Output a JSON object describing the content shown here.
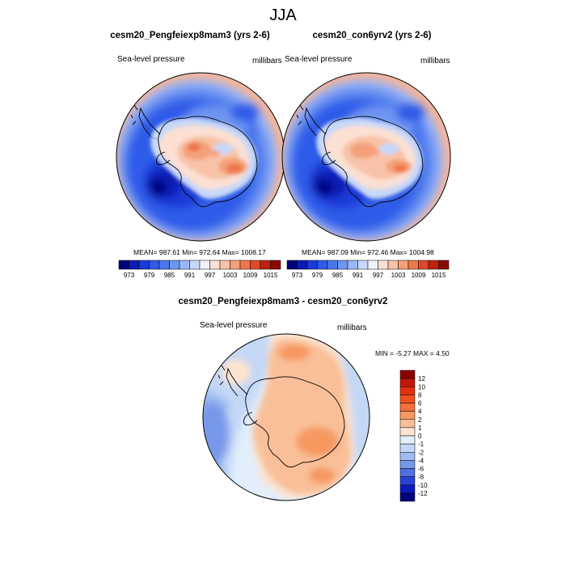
{
  "figure": {
    "title": "JJA"
  },
  "chart_data": [
    {
      "type": "heatmap",
      "title": "cesm20_Pengfeiexp8mam3 (yrs 2-6)",
      "variable": "Sea-level pressure",
      "units": "millibars",
      "stats": "MEAN= 987.61  Min= 972.64  Max= 1008.17",
      "mean": 987.61,
      "min": 972.64,
      "max": 1008.17,
      "colorbar": {
        "ticks": [
          "973",
          "979",
          "985",
          "991",
          "997",
          "1003",
          "1009",
          "1015"
        ],
        "levels": [
          973,
          976,
          979,
          982,
          985,
          988,
          991,
          994,
          997,
          1000,
          1003,
          1006,
          1009,
          1012,
          1015
        ],
        "colors": [
          "#00007a",
          "#0a1cb4",
          "#1a3bd8",
          "#2f5be8",
          "#4a77ee",
          "#6f95f2",
          "#9bb6f5",
          "#c7d8f8",
          "#ecf3fb",
          "#fbe0d3",
          "#f8c3a8",
          "#f4a079",
          "#ee774c",
          "#e1472a",
          "#c0220f",
          "#8b0a00"
        ]
      }
    },
    {
      "type": "heatmap",
      "title": "cesm20_con6yrv2 (yrs 2-6)",
      "variable": "Sea-level pressure",
      "units": "millibars",
      "stats": "MEAN= 987.09  Min= 972.46  Max= 1004.98",
      "mean": 987.09,
      "min": 972.46,
      "max": 1004.98,
      "colorbar": {
        "ticks": [
          "973",
          "979",
          "985",
          "991",
          "997",
          "1003",
          "1009",
          "1015"
        ],
        "levels": [
          973,
          976,
          979,
          982,
          985,
          988,
          991,
          994,
          997,
          1000,
          1003,
          1006,
          1009,
          1012,
          1015
        ],
        "colors": [
          "#00007a",
          "#0a1cb4",
          "#1a3bd8",
          "#2f5be8",
          "#4a77ee",
          "#6f95f2",
          "#9bb6f5",
          "#c7d8f8",
          "#ecf3fb",
          "#fbe0d3",
          "#f8c3a8",
          "#f4a079",
          "#ee774c",
          "#e1472a",
          "#c0220f",
          "#8b0a00"
        ]
      }
    },
    {
      "type": "heatmap",
      "title": "cesm20_Pengfeiexp8mam3 - cesm20_con6yrv2",
      "variable": "Sea-level pressure",
      "units": "millibars",
      "stats": "MIN =  -5.27 MAX =   4.50",
      "min": -5.27,
      "max": 4.5,
      "colorbar": {
        "ticks": [
          "12",
          "10",
          "8",
          "6",
          "4",
          "2",
          "1",
          "0",
          "-1",
          "-2",
          "-4",
          "-6",
          "-8",
          "-10",
          "-12"
        ],
        "colors": [
          "#8b0000",
          "#c01808",
          "#e03010",
          "#f05020",
          "#f4703a",
          "#f69860",
          "#f9bf98",
          "#fde4d2",
          "#e2eefb",
          "#c4d8f6",
          "#9fbdf0",
          "#7899ea",
          "#4f70e3",
          "#2843d4",
          "#0b1ab8",
          "#00007a"
        ]
      }
    }
  ]
}
